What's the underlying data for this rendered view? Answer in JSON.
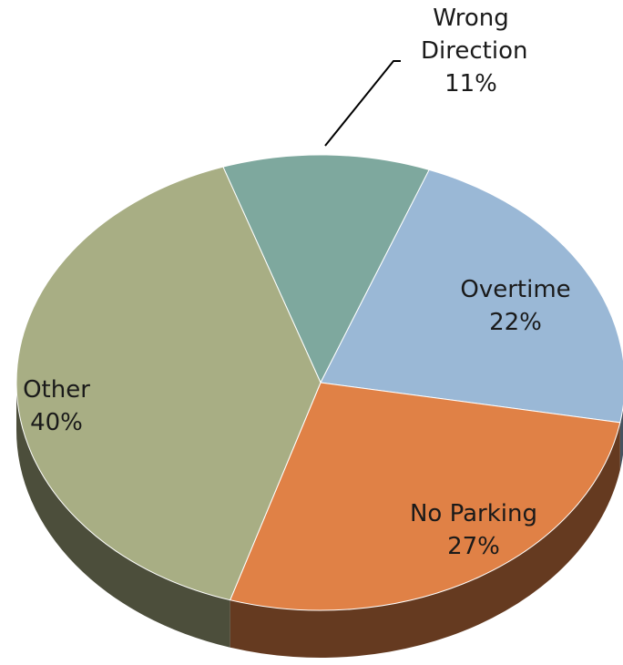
{
  "chart_data": {
    "type": "pie",
    "categories": [
      "Wrong Direction",
      "Overtime",
      "No Parking",
      "Other"
    ],
    "values": [
      11,
      22,
      27,
      40
    ],
    "value_labels": [
      "11%",
      "22%",
      "27%",
      "40%"
    ],
    "colors": [
      "#7ea89e",
      "#9ab8d6",
      "#e08146",
      "#a8ae84"
    ]
  }
}
